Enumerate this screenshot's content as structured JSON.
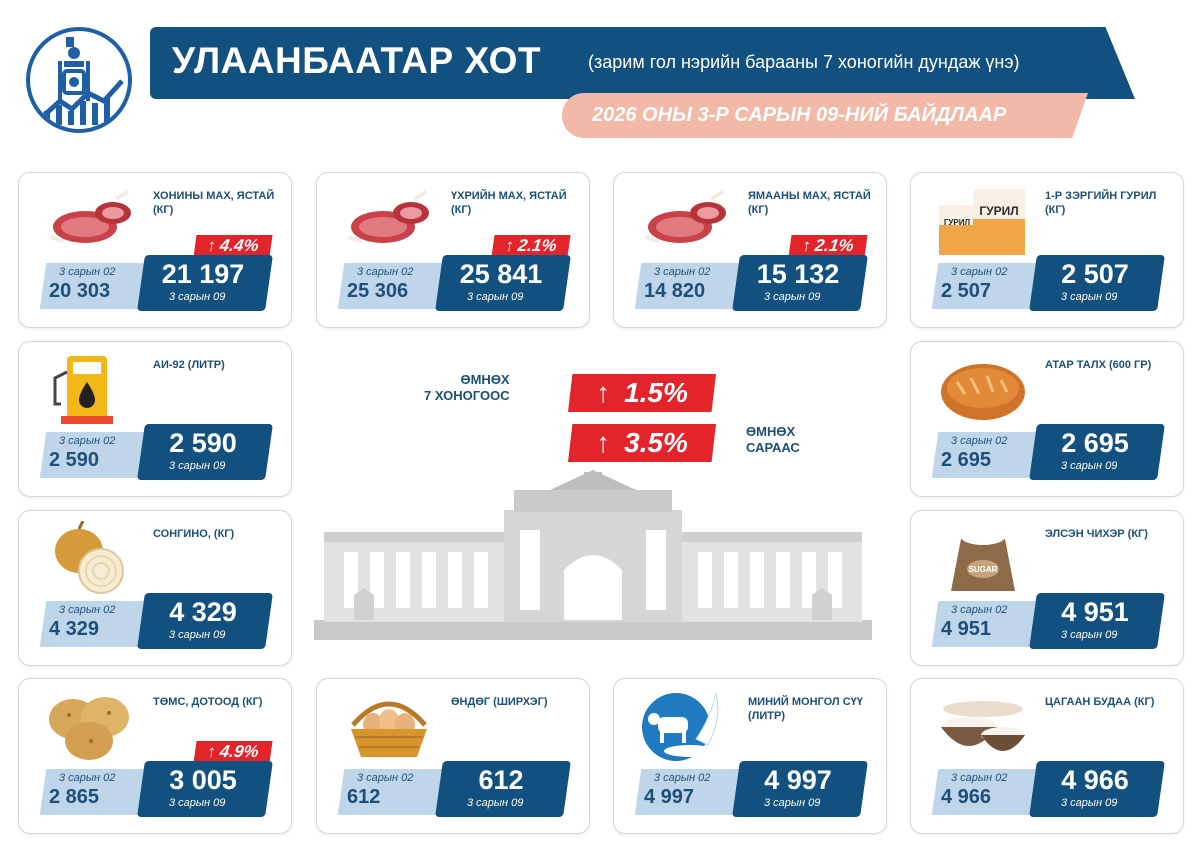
{
  "header": {
    "title": "УЛААНБААТАР ХОТ",
    "subtitle": "(зарим гол нэрийн барааны 7 хоногийн дундаж үнэ)",
    "date": "2026 ОНЫ 3-Р САРЫН 09-НИЙ БАЙДЛААР"
  },
  "center": {
    "week_label_1": "ӨМНӨХ",
    "week_label_2": "7 ХОНОГООС",
    "week_change": "1.5%",
    "month_label_1": "ӨМНӨХ",
    "month_label_2": "САРААС",
    "month_change": "3.5%",
    "arrow": "↑"
  },
  "colors": {
    "navy": "#12507f",
    "light_blue": "#bfd6ea",
    "red": "#e3242b",
    "peach": "#f2b9a8"
  },
  "items": [
    {
      "name": "ХОНИНЫ МАХ, ЯСТАЙ (КГ)",
      "icon": "mutton-icon",
      "change": "4.4%",
      "prev_label": "3 сарын 02",
      "prev": "20 303",
      "cur": "21 197",
      "cur_label": "3 сарын 09"
    },
    {
      "name": "ҮХРИЙН МАХ, ЯСТАЙ (КГ)",
      "icon": "beef-icon",
      "change": "2.1%",
      "prev_label": "3 сарын 02",
      "prev": "25 306",
      "cur": "25 841",
      "cur_label": "3 сарын 09"
    },
    {
      "name": "ЯМААНЫ МАХ, ЯСТАЙ (КГ)",
      "icon": "goat-meat-icon",
      "change": "2.1%",
      "prev_label": "3 сарын 02",
      "prev": "14 820",
      "cur": "15 132",
      "cur_label": "3 сарын 09"
    },
    {
      "name": "1-Р ЗЭРГИЙН ГУРИЛ (КГ)",
      "icon": "flour-icon",
      "icon_text": "ГУРИЛ",
      "change": "",
      "prev_label": "3 сарын 02",
      "prev": "2 507",
      "cur": "2 507",
      "cur_label": "3 сарын 09"
    },
    {
      "name": "АИ-92 (ЛИТР)",
      "icon": "fuel-pump-icon",
      "change": "",
      "prev_label": "3 сарын 02",
      "prev": "2 590",
      "cur": "2 590",
      "cur_label": "3 сарын 09"
    },
    {
      "name": "АТАР ТАЛХ (600 ГР)",
      "icon": "bread-icon",
      "change": "",
      "prev_label": "3 сарын 02",
      "prev": "2 695",
      "cur": "2 695",
      "cur_label": "3 сарын 09"
    },
    {
      "name": "СОНГИНО, (КГ)",
      "icon": "onion-icon",
      "change": "",
      "prev_label": "3 сарын 02",
      "prev": "4 329",
      "cur": "4 329",
      "cur_label": "3 сарын 09"
    },
    {
      "name": "ЭЛСЭН ЧИХЭР (КГ)",
      "icon": "sugar-sack-icon",
      "icon_text": "SUGAR",
      "change": "",
      "prev_label": "3 сарын 02",
      "prev": "4 951",
      "cur": "4 951",
      "cur_label": "3 сарын 09"
    },
    {
      "name": "ТӨМС, ДОТООД (КГ)",
      "icon": "potato-icon",
      "change": "4.9%",
      "prev_label": "3 сарын 02",
      "prev": "2 865",
      "cur": "3 005",
      "cur_label": "3 сарын 09"
    },
    {
      "name": "ӨНДӨГ (ШИРХЭГ)",
      "icon": "egg-basket-icon",
      "change": "",
      "prev_label": "3 сарын 02",
      "prev": "612",
      "cur": "612",
      "cur_label": "3 сарын 09"
    },
    {
      "name": "МИНИЙ МОНГОЛ СҮҮ (ЛИТР)",
      "icon": "milk-icon",
      "change": "",
      "prev_label": "3 сарын 02",
      "prev": "4 997",
      "cur": "4 997",
      "cur_label": "3 сарын 09"
    },
    {
      "name": "ЦАГААН БУДАА (КГ)",
      "icon": "rice-bowl-icon",
      "change": "",
      "prev_label": "3 сарын 02",
      "prev": "4 966",
      "cur": "4 966",
      "cur_label": "3 сарын 09"
    }
  ]
}
